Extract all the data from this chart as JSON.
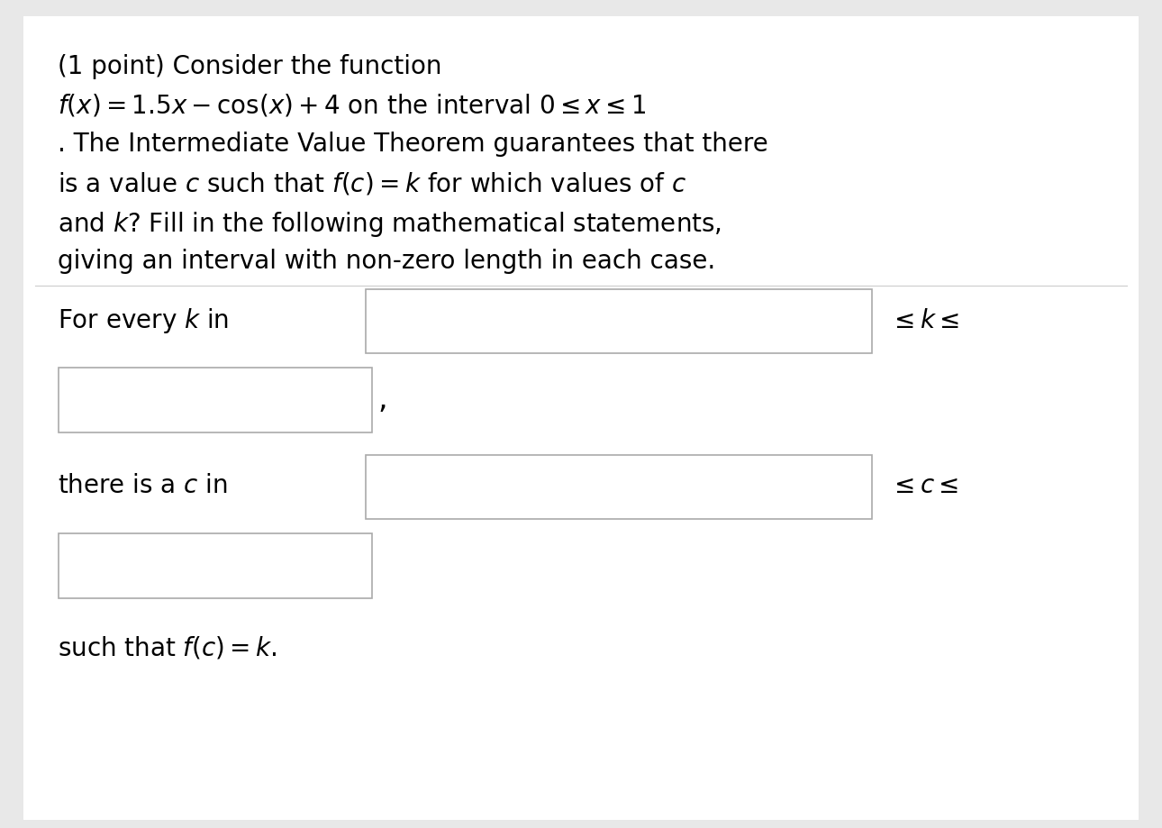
{
  "bg_color": "#e8e8e8",
  "white_bg": "#ffffff",
  "box_color": "#ffffff",
  "box_edge_color": "#aaaaaa",
  "text_color": "#000000",
  "figsize": [
    12.9,
    9.19
  ],
  "dpi": 100,
  "line1": "(1 point) Consider the function",
  "line2a": "$f(x) = 1.5x - \\cos(x) + 4$",
  "line2b": " on the interval ",
  "line2c": "$0 \\leq x \\leq 1$",
  "line3": ". The Intermediate Value Theorem guarantees that there",
  "line4": "is a value $c$ such that $f(c) = k$ for which values of $c$",
  "line5": "and $k$? Fill in the following mathematical statements,",
  "line6": "giving an interval with non-zero length in each case.",
  "label_for_every_k": "For every $k$ in",
  "symbol_leq_k_leq": "$\\leq k \\leq$",
  "label_there_is_a_c": "there is a $c$ in",
  "symbol_leq_c_leq": "$\\leq c \\leq$",
  "label_such_that": "such that $f(c) = k$.",
  "fs_main": 20
}
